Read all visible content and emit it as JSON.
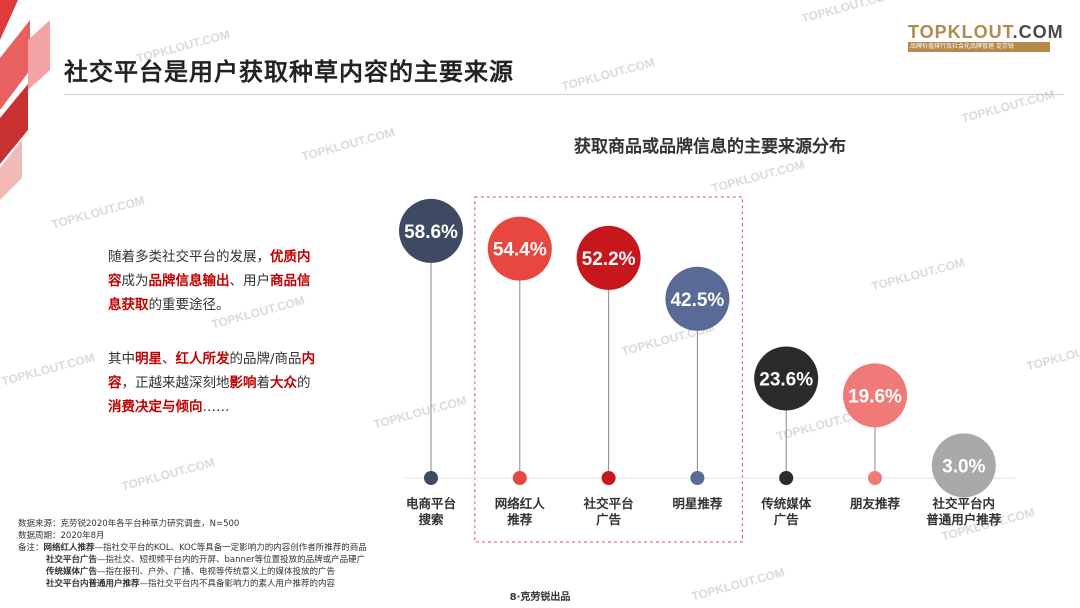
{
  "header": {
    "title": "社交平台是用户获取种草内容的主要来源",
    "logo_brand_1": "TOPKLOUT",
    "logo_brand_2": ".COM",
    "logo_tagline": "品牌价值排行及社会化品牌管理 克劳锐"
  },
  "watermark": "TOPKLOUT.COM",
  "body_text": {
    "p1": [
      {
        "t": "随着多类社交平台的发展，",
        "hl": false
      },
      {
        "t": "优质内容",
        "hl": true
      },
      {
        "t": "成为",
        "hl": false
      },
      {
        "t": "品牌信息输出",
        "hl": true
      },
      {
        "t": "、用户",
        "hl": false
      },
      {
        "t": "商品信息获取",
        "hl": true
      },
      {
        "t": "的重要途径。",
        "hl": false
      }
    ],
    "p2": [
      {
        "t": "其中",
        "hl": false
      },
      {
        "t": "明星",
        "hl": true
      },
      {
        "t": "、",
        "hl": false
      },
      {
        "t": "红人所发",
        "hl": true
      },
      {
        "t": "的品牌/商品",
        "hl": false
      },
      {
        "t": "内容",
        "hl": true
      },
      {
        "t": "，正越来越深刻地",
        "hl": false
      },
      {
        "t": "影响",
        "hl": true
      },
      {
        "t": "着",
        "hl": false
      },
      {
        "t": "大众",
        "hl": true
      },
      {
        "t": "的",
        "hl": false
      },
      {
        "t": "消费决定与倾向",
        "hl": true
      },
      {
        "t": "……",
        "hl": false
      }
    ]
  },
  "footnotes": {
    "source": "数据来源：克劳锐2020年各平台种草力研究调查，N=500",
    "period": "数据周期：2020年8月",
    "notes_prefix": "备注：",
    "notes": [
      {
        "term": "网络红人推荐",
        "desc": "—指社交平台的KOL、KOC等具备一定影响力的内容创作者所推荐的商品"
      },
      {
        "term": "社交平台广告",
        "desc": "—指社交、短视频平台内的开屏、banner等位置投放的品牌或产品硬广"
      },
      {
        "term": "传统媒体广告",
        "desc": "—指在报刊、户外、广播、电视等传统意义上的媒体投放的广告"
      },
      {
        "term": "社交平台内普通用户推荐",
        "desc": "—指社交平台内不具备影响力的素人用户推荐的内容"
      }
    ]
  },
  "page_number": "8·克劳锐出品",
  "chart_data": {
    "type": "bar",
    "title": "获取商品或品牌信息的主要来源分布",
    "categories": [
      "电商平台\n搜索",
      "网络红人\n推荐",
      "社交平台\n广告",
      "明星推荐",
      "传统媒体\n广告",
      "朋友推荐",
      "社交平台内\n普通用户推荐"
    ],
    "values": [
      58.6,
      54.4,
      52.2,
      42.5,
      23.6,
      19.6,
      3.0
    ],
    "value_labels": [
      "58.6%",
      "54.4%",
      "52.2%",
      "42.5%",
      "23.6%",
      "19.6%",
      "3.0%"
    ],
    "unit": "%",
    "colors": [
      "#3e4a63",
      "#e8473f",
      "#c8161d",
      "#5a6a96",
      "#2b2b2b",
      "#f07a78",
      "#a9a9a9"
    ],
    "highlight_group": [
      1,
      2,
      3
    ],
    "highlight_color": "#d9534f",
    "ylim": [
      0,
      60
    ],
    "grid": false
  }
}
